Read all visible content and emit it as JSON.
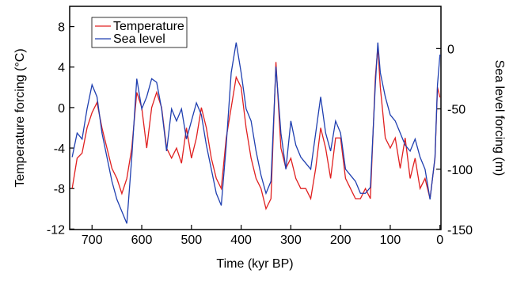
{
  "chart_data": {
    "type": "line",
    "xlabel": "Time (kyr BP)",
    "ylabel": "Temperature forcing (°C)",
    "y2label": "Sea level forcing (m)",
    "x": [
      740,
      730,
      720,
      710,
      700,
      690,
      680,
      670,
      660,
      650,
      640,
      630,
      620,
      610,
      600,
      590,
      580,
      570,
      560,
      550,
      540,
      530,
      520,
      510,
      500,
      490,
      480,
      470,
      460,
      450,
      440,
      430,
      420,
      410,
      400,
      390,
      380,
      370,
      360,
      350,
      340,
      330,
      320,
      310,
      300,
      290,
      280,
      270,
      260,
      250,
      240,
      230,
      220,
      210,
      200,
      190,
      180,
      170,
      160,
      150,
      140,
      130,
      125,
      120,
      110,
      100,
      90,
      80,
      70,
      60,
      50,
      40,
      30,
      20,
      10,
      5,
      0
    ],
    "series": [
      {
        "name": "Temperature",
        "color": "#e02020",
        "axis": "y",
        "values": [
          -8,
          -5,
          -4.5,
          -2,
          -0.5,
          0.5,
          -2,
          -4,
          -6,
          -7,
          -8.5,
          -7,
          -4,
          1.5,
          0,
          -4,
          0,
          1.5,
          0,
          -4,
          -5,
          -4,
          -5.5,
          -2,
          -5,
          -3,
          0,
          -2,
          -5,
          -7,
          -8,
          -3,
          0,
          3,
          2,
          -2,
          -5,
          -7,
          -8,
          -10,
          -9,
          4.5,
          -4,
          -6,
          -5,
          -7,
          -8,
          -8,
          -9,
          -6,
          -2,
          -4,
          -7,
          -3,
          -3,
          -7,
          -8,
          -9,
          -9,
          -8,
          -9,
          3,
          6,
          2,
          -3,
          -4,
          -3,
          -6,
          -3,
          -7,
          -5,
          -8,
          -7,
          -9,
          -5,
          2,
          1
        ]
      },
      {
        "name": "Sea level",
        "color": "#1f3fb0",
        "axis": "y2",
        "values": [
          -90,
          -70,
          -75,
          -50,
          -30,
          -40,
          -70,
          -90,
          -110,
          -125,
          -135,
          -145,
          -90,
          -25,
          -50,
          -40,
          -25,
          -28,
          -50,
          -85,
          -50,
          -60,
          -50,
          -75,
          -60,
          -45,
          -55,
          -80,
          -100,
          -120,
          -130,
          -80,
          -20,
          5,
          -20,
          -50,
          -60,
          -85,
          -105,
          -120,
          -110,
          -15,
          -70,
          -100,
          -60,
          -80,
          -90,
          -95,
          -100,
          -70,
          -40,
          -70,
          -85,
          -60,
          -70,
          -100,
          -105,
          -110,
          -120,
          -120,
          -115,
          -30,
          5,
          -20,
          -40,
          -55,
          -60,
          -70,
          -80,
          -85,
          -75,
          -90,
          -100,
          -125,
          -90,
          -30,
          -5
        ]
      }
    ],
    "xlim": [
      745,
      -2
    ],
    "xticks": [
      700,
      600,
      500,
      400,
      300,
      200,
      100,
      0
    ],
    "ylim": [
      -12.05,
      10
    ],
    "yticks": [
      -12,
      -8,
      -4,
      0,
      4,
      8
    ],
    "y2lim": [
      -150,
      35
    ],
    "y2ticks": [
      -150,
      -100,
      -50,
      0
    ],
    "legend": "upper left"
  }
}
